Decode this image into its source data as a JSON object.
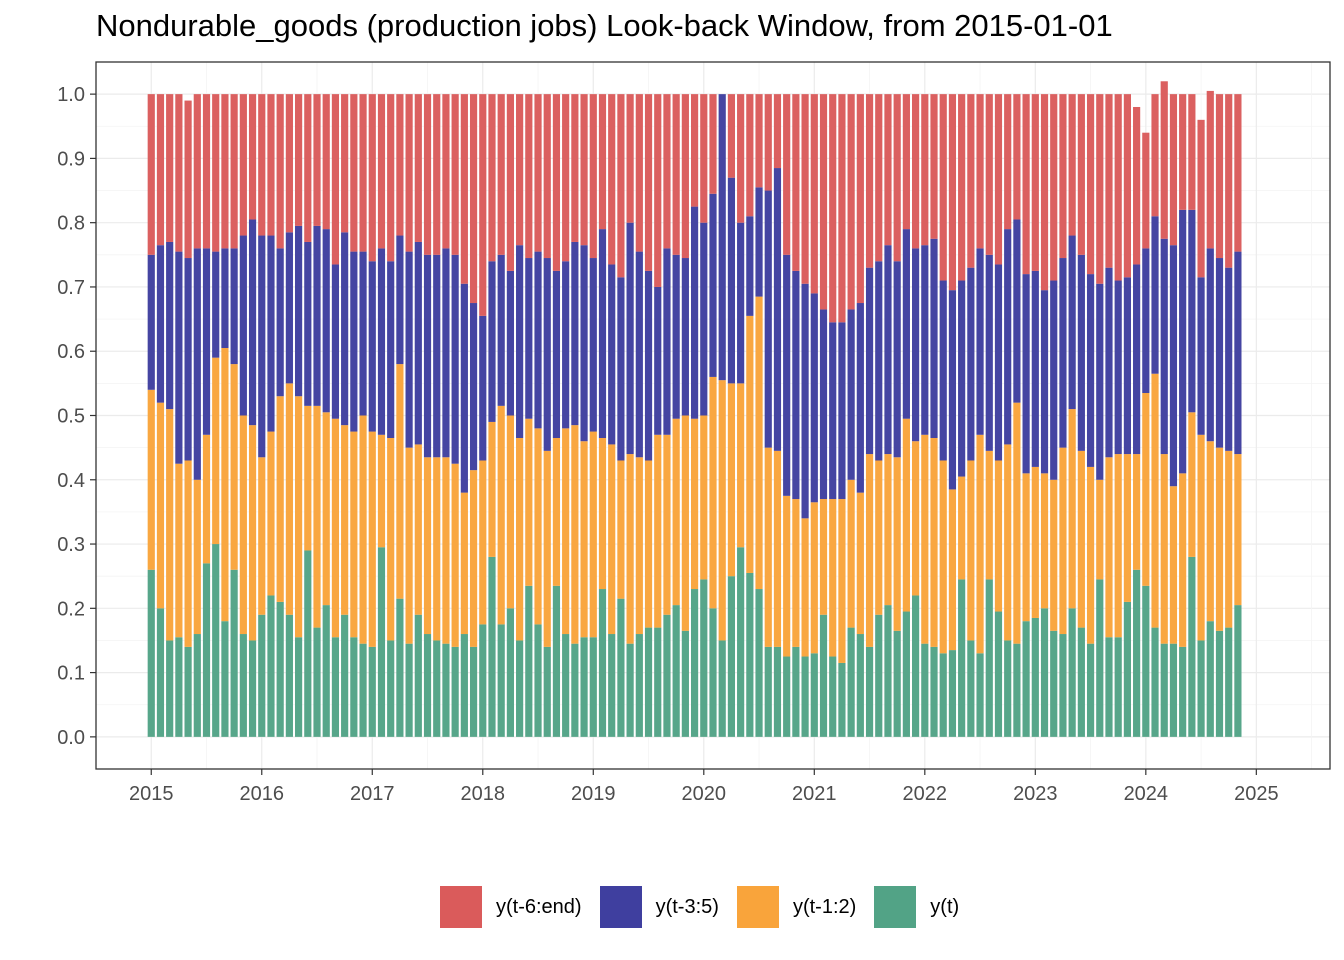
{
  "chart_data": {
    "type": "bar",
    "stacked": true,
    "title": "Nondurable_goods (production jobs) Look-back Window, from 2015-01-01",
    "xlabel": "",
    "ylabel": "",
    "x_start": "2015-01",
    "x_frequency": "monthly",
    "xlim": [
      "2014-07",
      "2025-09"
    ],
    "ylim": [
      -0.05,
      1.05
    ],
    "y_ticks": [
      0.0,
      0.1,
      0.2,
      0.3,
      0.4,
      0.5,
      0.6,
      0.7,
      0.8,
      0.9,
      1.0
    ],
    "y_tick_labels": [
      "0.0",
      "0.1",
      "0.2",
      "0.3",
      "0.4",
      "0.5",
      "0.6",
      "0.7",
      "0.8",
      "0.9",
      "1.0"
    ],
    "x_tick_labels": [
      "2015",
      "2016",
      "2017",
      "2018",
      "2019",
      "2020",
      "2021",
      "2022",
      "2023",
      "2024",
      "2025"
    ],
    "grid": true,
    "legend_position": "bottom",
    "series": [
      {
        "name": "y(t)",
        "color": "#52A386",
        "values": [
          0.26,
          0.2,
          0.15,
          0.155,
          0.14,
          0.16,
          0.27,
          0.3,
          0.18,
          0.26,
          0.16,
          0.15,
          0.19,
          0.22,
          0.21,
          0.19,
          0.155,
          0.29,
          0.17,
          0.205,
          0.155,
          0.19,
          0.155,
          0.145,
          0.14,
          0.295,
          0.15,
          0.215,
          0.145,
          0.19,
          0.16,
          0.15,
          0.145,
          0.14,
          0.16,
          0.14,
          0.175,
          0.28,
          0.175,
          0.2,
          0.15,
          0.235,
          0.175,
          0.14,
          0.235,
          0.16,
          0.145,
          0.155,
          0.155,
          0.23,
          0.16,
          0.215,
          0.145,
          0.16,
          0.17,
          0.17,
          0.19,
          0.205,
          0.165,
          0.23,
          0.245,
          0.2,
          0.15,
          0.25,
          0.295,
          0.255,
          0.23,
          0.14,
          0.14,
          0.125,
          0.14,
          0.125,
          0.13,
          0.19,
          0.125,
          0.115,
          0.17,
          0.16,
          0.14,
          0.19,
          0.205,
          0.165,
          0.195,
          0.22,
          0.145,
          0.14,
          0.13,
          0.135,
          0.245,
          0.15,
          0.13,
          0.245,
          0.195,
          0.15,
          0.145,
          0.18,
          0.185,
          0.2,
          0.165,
          0.16,
          0.2,
          0.17,
          0.145,
          0.245,
          0.155,
          0.155,
          0.21,
          0.26,
          0.235,
          0.17,
          0.145,
          0.145,
          0.14,
          0.28,
          0.15,
          0.18,
          0.165,
          0.17,
          0.205
        ]
      },
      {
        "name": "y(t-1:2)",
        "color": "#F9A43B",
        "values": [
          0.28,
          0.32,
          0.36,
          0.27,
          0.29,
          0.24,
          0.2,
          0.29,
          0.425,
          0.32,
          0.34,
          0.335,
          0.245,
          0.255,
          0.32,
          0.36,
          0.375,
          0.225,
          0.345,
          0.3,
          0.34,
          0.295,
          0.32,
          0.355,
          0.335,
          0.175,
          0.315,
          0.365,
          0.305,
          0.265,
          0.275,
          0.285,
          0.29,
          0.285,
          0.22,
          0.275,
          0.255,
          0.21,
          0.34,
          0.3,
          0.315,
          0.26,
          0.305,
          0.305,
          0.23,
          0.32,
          0.34,
          0.305,
          0.32,
          0.235,
          0.295,
          0.215,
          0.295,
          0.275,
          0.26,
          0.3,
          0.28,
          0.29,
          0.335,
          0.265,
          0.255,
          0.36,
          0.405,
          0.3,
          0.255,
          0.4,
          0.455,
          0.31,
          0.305,
          0.25,
          0.23,
          0.215,
          0.235,
          0.18,
          0.245,
          0.255,
          0.23,
          0.22,
          0.3,
          0.24,
          0.235,
          0.27,
          0.3,
          0.24,
          0.325,
          0.325,
          0.3,
          0.25,
          0.16,
          0.28,
          0.34,
          0.2,
          0.235,
          0.305,
          0.375,
          0.23,
          0.235,
          0.21,
          0.235,
          0.29,
          0.31,
          0.275,
          0.275,
          0.155,
          0.28,
          0.285,
          0.23,
          0.18,
          0.3,
          0.395,
          0.295,
          0.245,
          0.27,
          0.225,
          0.32,
          0.28,
          0.285,
          0.275,
          0.235
        ]
      },
      {
        "name": "y(t-3:5)",
        "color": "#3F3F9F",
        "values": [
          0.21,
          0.245,
          0.26,
          0.33,
          0.315,
          0.36,
          0.29,
          0.165,
          0.155,
          0.18,
          0.28,
          0.32,
          0.345,
          0.305,
          0.23,
          0.235,
          0.265,
          0.255,
          0.28,
          0.285,
          0.24,
          0.3,
          0.28,
          0.255,
          0.265,
          0.29,
          0.275,
          0.2,
          0.305,
          0.315,
          0.315,
          0.315,
          0.325,
          0.325,
          0.325,
          0.26,
          0.225,
          0.25,
          0.235,
          0.225,
          0.3,
          0.25,
          0.275,
          0.3,
          0.26,
          0.26,
          0.285,
          0.305,
          0.27,
          0.325,
          0.28,
          0.285,
          0.36,
          0.32,
          0.295,
          0.23,
          0.29,
          0.255,
          0.245,
          0.33,
          0.3,
          0.285,
          0.445,
          0.32,
          0.25,
          0.155,
          0.17,
          0.4,
          0.44,
          0.375,
          0.355,
          0.365,
          0.325,
          0.295,
          0.275,
          0.275,
          0.265,
          0.295,
          0.29,
          0.31,
          0.325,
          0.305,
          0.295,
          0.3,
          0.295,
          0.31,
          0.28,
          0.31,
          0.305,
          0.3,
          0.29,
          0.305,
          0.305,
          0.335,
          0.285,
          0.31,
          0.305,
          0.285,
          0.31,
          0.295,
          0.27,
          0.305,
          0.3,
          0.305,
          0.295,
          0.27,
          0.275,
          0.295,
          0.225,
          0.245,
          0.335,
          0.375,
          0.41,
          0.315,
          0.245,
          0.3,
          0.295,
          0.285,
          0.315
        ]
      },
      {
        "name": "y(t-6:end)",
        "color": "#DA5B5B",
        "values": [
          0.25,
          0.235,
          0.23,
          0.245,
          0.245,
          0.24,
          0.24,
          0.245,
          0.24,
          0.24,
          0.22,
          0.195,
          0.22,
          0.22,
          0.24,
          0.215,
          0.205,
          0.23,
          0.205,
          0.21,
          0.265,
          0.215,
          0.245,
          0.245,
          0.26,
          0.24,
          0.26,
          0.22,
          0.245,
          0.23,
          0.25,
          0.25,
          0.24,
          0.25,
          0.295,
          0.325,
          0.345,
          0.26,
          0.25,
          0.275,
          0.235,
          0.255,
          0.245,
          0.255,
          0.275,
          0.26,
          0.23,
          0.235,
          0.255,
          0.21,
          0.265,
          0.285,
          0.2,
          0.245,
          0.275,
          0.3,
          0.24,
          0.25,
          0.255,
          0.175,
          0.2,
          0.155,
          0.0,
          0.13,
          0.2,
          0.19,
          0.145,
          0.15,
          0.115,
          0.25,
          0.275,
          0.295,
          0.31,
          0.335,
          0.355,
          0.355,
          0.335,
          0.325,
          0.27,
          0.26,
          0.235,
          0.26,
          0.21,
          0.24,
          0.235,
          0.225,
          0.29,
          0.305,
          0.29,
          0.27,
          0.24,
          0.25,
          0.265,
          0.21,
          0.195,
          0.28,
          0.275,
          0.305,
          0.29,
          0.255,
          0.22,
          0.25,
          0.28,
          0.295,
          0.27,
          0.29,
          0.285,
          0.245,
          0.18,
          0.19,
          0.245,
          0.235,
          0.18,
          0.18,
          0.245,
          0.245,
          0.255,
          0.27,
          0.245
        ]
      }
    ]
  }
}
